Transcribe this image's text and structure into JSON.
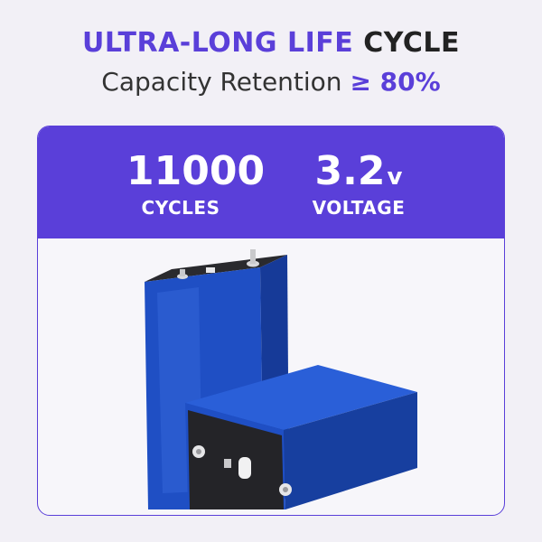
{
  "header": {
    "title_accent": "ULTRA-LONG LIFE",
    "title_rest": "CYCLE",
    "subtitle_lead": "Capacity Retention",
    "subtitle_value": "≥ 80%"
  },
  "stats": {
    "cycles_value": "11000",
    "cycles_label": "CYCLES",
    "voltage_value": "3.2",
    "voltage_unit": "v",
    "voltage_label": "VOLTAGE"
  },
  "colors": {
    "accent": "#5a3fd9",
    "background": "#f2f0f6",
    "battery_blue": "#1f4fc4"
  },
  "image": {
    "subject": "two-prismatic-lifepo4-battery-cells"
  }
}
